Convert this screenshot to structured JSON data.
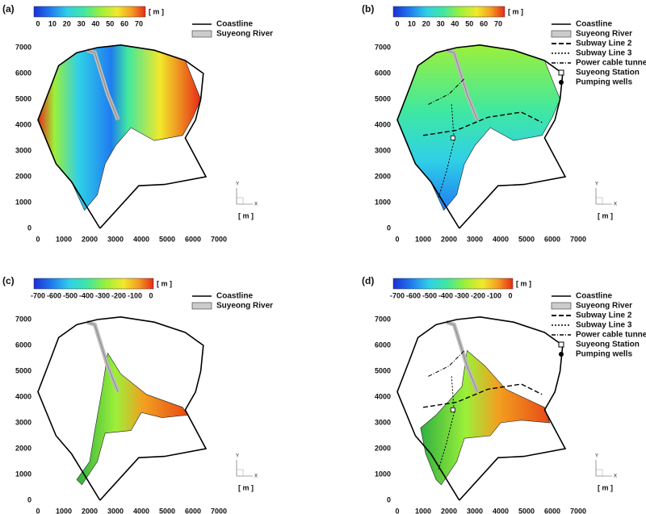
{
  "panels": [
    {
      "label": "(a)",
      "colorbar": {
        "ticks": [
          0,
          10,
          20,
          30,
          40,
          50,
          60,
          70
        ],
        "unit": "[ m ]"
      },
      "legend": [
        "Coastline",
        "Suyeong River"
      ],
      "xticks": [
        0,
        1000,
        2000,
        3000,
        4000,
        5000,
        6000,
        7000
      ],
      "yticks": [
        0,
        1000,
        2000,
        3000,
        4000,
        5000,
        6000,
        7000
      ],
      "axis": {
        "y": "Y",
        "x": "X",
        "unit": "[ m ]"
      }
    },
    {
      "label": "(b)",
      "colorbar": {
        "ticks": [
          0,
          10,
          20,
          30,
          40,
          50,
          60,
          70
        ],
        "unit": "[ m ]"
      },
      "legend": [
        "Coastline",
        "Suyeong River",
        "Subway Line 2",
        "Subway Line 3",
        "Power cable tunnel",
        "Suyeong Station",
        "Pumping wells"
      ],
      "xticks": [
        0,
        1000,
        2000,
        3000,
        4000,
        5000,
        6000,
        7000
      ],
      "yticks": [
        0,
        1000,
        2000,
        3000,
        4000,
        5000,
        6000,
        7000
      ],
      "axis": {
        "y": "Y",
        "x": "X",
        "unit": "[ m ]"
      }
    },
    {
      "label": "(c)",
      "colorbar": {
        "ticks": [
          -700,
          -600,
          -500,
          -400,
          -300,
          -200,
          -100,
          0
        ],
        "unit": "[ m ]"
      },
      "legend": [
        "Coastline",
        "Suyeong River"
      ],
      "xticks": [
        0,
        1000,
        2000,
        3000,
        4000,
        5000,
        6000,
        7000
      ],
      "yticks": [
        0,
        1000,
        2000,
        3000,
        4000,
        5000,
        6000,
        7000
      ],
      "axis": {
        "y": "Y",
        "x": "X",
        "unit": "[ m ]"
      }
    },
    {
      "label": "(d)",
      "colorbar": {
        "ticks": [
          -700,
          -600,
          -500,
          -400,
          -300,
          -200,
          -100,
          0
        ],
        "unit": "[ m ]"
      },
      "legend": [
        "Coastline",
        "Suyeong River",
        "Subway Line 2",
        "Subway Line 3",
        "Power cable tunnel",
        "Suyeong Station",
        "Pumping wells"
      ],
      "xticks": [
        0,
        1000,
        2000,
        3000,
        4000,
        5000,
        6000,
        7000
      ],
      "yticks": [
        0,
        1000,
        2000,
        3000,
        4000,
        5000,
        6000,
        7000
      ],
      "axis": {
        "y": "Y",
        "x": "X",
        "unit": "[ m ]"
      }
    }
  ]
}
